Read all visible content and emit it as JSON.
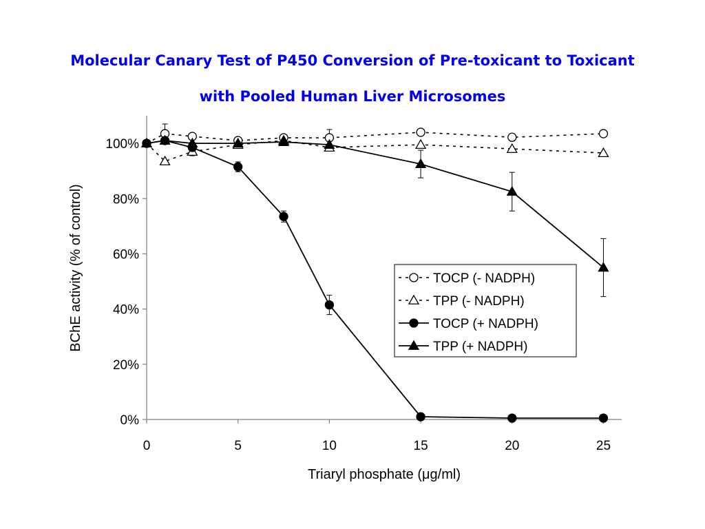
{
  "colors": {
    "title": "#0000ee",
    "axis": "#808080",
    "series": "#000000",
    "background": "#ffffff"
  },
  "title_lines": [
    "Molecular Canary Test of P450 Conversion of Pre-toxicant to Toxicant",
    "with Pooled Human Liver Microsomes"
  ],
  "chart_data": {
    "type": "line",
    "title": "Molecular Canary Test of P450 Conversion of Pre-toxicant to Toxicant with Pooled Human Liver Microsomes",
    "xlabel": "Triaryl phosphate (μg/ml)",
    "ylabel": "BChE activity (% of control)",
    "xlim": [
      0,
      26
    ],
    "ylim": [
      0,
      1.1
    ],
    "x_ticks": [
      0,
      5,
      10,
      15,
      20,
      25
    ],
    "y_ticks": [
      0,
      0.2,
      0.4,
      0.6,
      0.8,
      1.0
    ],
    "y_tick_labels": [
      "0%",
      "20%",
      "40%",
      "60%",
      "80%",
      "100%"
    ],
    "grid": false,
    "legend_position": "lower-right",
    "series": [
      {
        "name": "TOCP (- NADPH)",
        "line": "dashed",
        "marker": "circle",
        "filled": false,
        "x": [
          0,
          1,
          2.5,
          5,
          7.5,
          10,
          15,
          20,
          25
        ],
        "y": [
          1.0,
          1.035,
          1.025,
          1.01,
          1.02,
          1.02,
          1.04,
          1.022,
          1.035
        ],
        "err": [
          0,
          0.035,
          0,
          0.007,
          0.012,
          0.03,
          0,
          0,
          0
        ]
      },
      {
        "name": "TPP (- NADPH)",
        "line": "dashed",
        "marker": "triangle",
        "filled": false,
        "x": [
          0,
          1,
          2.5,
          5,
          7.5,
          10,
          15,
          20,
          25
        ],
        "y": [
          1.0,
          0.935,
          0.97,
          0.995,
          1.01,
          0.985,
          0.995,
          0.98,
          0.965
        ],
        "err": [
          0,
          0,
          0.015,
          0.01,
          0,
          0,
          0,
          0,
          0
        ]
      },
      {
        "name": "TOCP (+ NADPH)",
        "line": "solid",
        "marker": "circle",
        "filled": true,
        "x": [
          0,
          1,
          2.5,
          5,
          7.5,
          10,
          15,
          20,
          25
        ],
        "y": [
          1.0,
          1.01,
          0.985,
          0.915,
          0.735,
          0.415,
          0.01,
          0.005,
          0.005
        ],
        "err": [
          0,
          0.01,
          0.01,
          0.018,
          0.02,
          0.035,
          0,
          0,
          0
        ]
      },
      {
        "name": "TPP (+ NADPH)",
        "line": "solid",
        "marker": "triangle",
        "filled": true,
        "x": [
          0,
          1,
          2.5,
          5,
          7.5,
          10,
          15,
          20,
          25
        ],
        "y": [
          1.0,
          1.01,
          1.0,
          1.0,
          1.005,
          0.995,
          0.925,
          0.825,
          0.55
        ],
        "err": [
          0,
          0,
          0,
          0,
          0,
          0,
          0.05,
          0.07,
          0.105
        ]
      }
    ]
  }
}
